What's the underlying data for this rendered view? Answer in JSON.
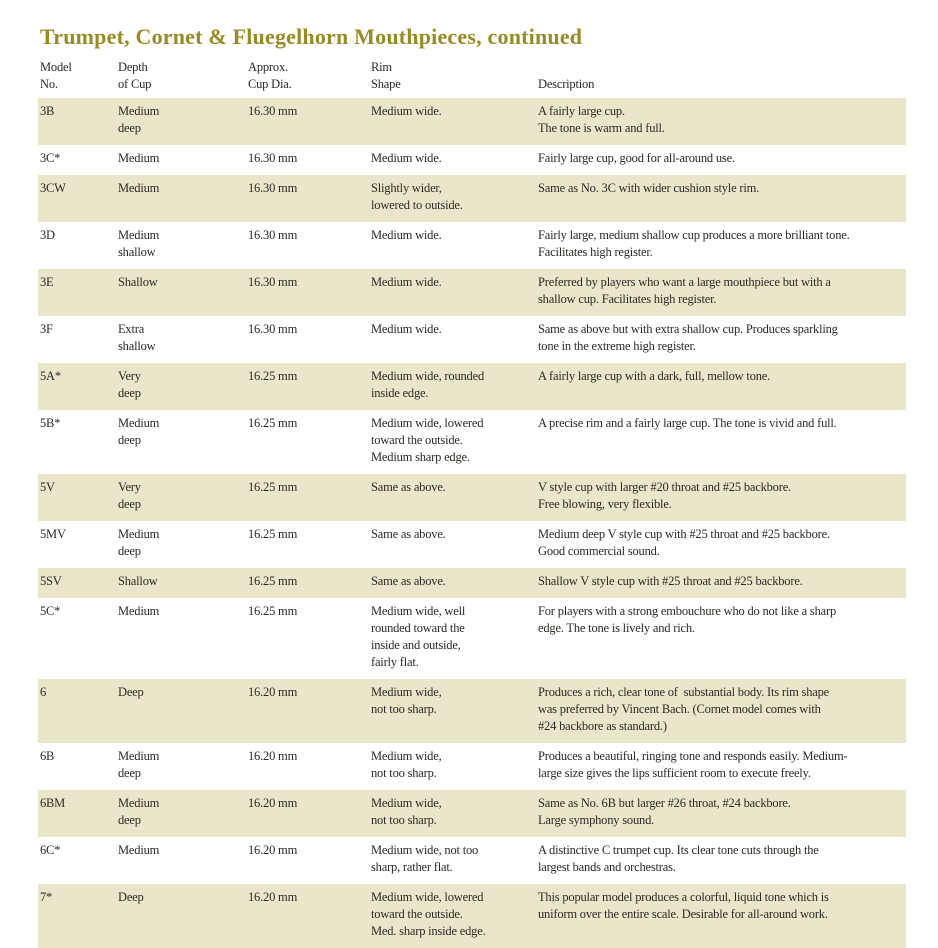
{
  "page": {
    "title": "Trumpet, Cornet & Fluegelhorn Mouthpieces, continued",
    "colors": {
      "title": "#998b24",
      "row_shade": "#eae6c9",
      "text": "#2d2a26",
      "background": "#ffffff"
    }
  },
  "table": {
    "headers": {
      "model": "Model\nNo.",
      "depth": "Depth\nof Cup",
      "cup_dia": "Approx.\nCup Dia.",
      "rim": "Rim\nShape",
      "desc": "Description"
    },
    "rows": [
      {
        "model": "3B",
        "depth": "Medium\ndeep",
        "cup_dia": "16.30 mm",
        "rim": "Medium wide.",
        "desc": "A fairly large cup.\nThe tone is warm and full."
      },
      {
        "model": "3C*",
        "depth": "Medium",
        "cup_dia": "16.30 mm",
        "rim": "Medium wide.",
        "desc": "Fairly large cup, good for all-around use."
      },
      {
        "model": "3CW",
        "depth": "Medium",
        "cup_dia": "16.30 mm",
        "rim": "Slightly wider,\nlowered to outside.",
        "desc": "Same as No. 3C with wider cushion style rim."
      },
      {
        "model": "3D",
        "depth": "Medium\nshallow",
        "cup_dia": "16.30 mm",
        "rim": "Medium wide.",
        "desc": "Fairly large, medium shallow cup produces a more brilliant tone.\nFacilitates high register."
      },
      {
        "model": "3E",
        "depth": "Shallow",
        "cup_dia": "16.30 mm",
        "rim": "Medium wide.",
        "desc": "Preferred by players who want a large mouthpiece but with a\nshallow cup. Facilitates high register."
      },
      {
        "model": "3F",
        "depth": "Extra\nshallow",
        "cup_dia": "16.30 mm",
        "rim": "Medium wide.",
        "desc": "Same as above but with extra shallow cup. Produces sparkling\ntone in the extreme high register."
      },
      {
        "model": "5A*",
        "depth": "Very\ndeep",
        "cup_dia": "16.25 mm",
        "rim": "Medium wide, rounded\ninside edge.",
        "desc": "A fairly large cup with a dark, full, mellow tone."
      },
      {
        "model": "5B*",
        "depth": "Medium\ndeep",
        "cup_dia": "16.25 mm",
        "rim": "Medium wide, lowered\ntoward the outside.\nMedium sharp edge.",
        "desc": "A precise rim and a fairly large cup. The tone is vivid and full."
      },
      {
        "model": "5V",
        "depth": "Very\ndeep",
        "cup_dia": "16.25 mm",
        "rim": "Same as above.",
        "desc": "V style cup with larger #20 throat and #25 backbore.\nFree blowing, very flexible."
      },
      {
        "model": "5MV",
        "depth": "Medium\ndeep",
        "cup_dia": "16.25 mm",
        "rim": "Same as above.",
        "desc": "Medium deep V style cup with #25 throat and #25 backbore.\nGood commercial sound."
      },
      {
        "model": "5SV",
        "depth": "Shallow",
        "cup_dia": "16.25 mm",
        "rim": "Same as above.",
        "desc": "Shallow V style cup with #25 throat and #25 backbore."
      },
      {
        "model": "5C*",
        "depth": "Medium",
        "cup_dia": "16.25 mm",
        "rim": "Medium wide, well\nrounded toward the\ninside and outside,\nfairly flat.",
        "desc": "For players with a strong embouchure who do not like a sharp\nedge. The tone is lively and rich."
      },
      {
        "model": "6",
        "depth": "Deep",
        "cup_dia": "16.20 mm",
        "rim": "Medium wide,\nnot too sharp.",
        "desc": "Produces a rich, clear tone of  substantial body. Its rim shape\nwas preferred by Vincent Bach. (Cornet model comes with\n#24 backbore as standard.)"
      },
      {
        "model": "6B",
        "depth": "Medium\ndeep",
        "cup_dia": "16.20 mm",
        "rim": "Medium wide,\nnot too sharp.",
        "desc": "Produces a beautiful, ringing tone and responds easily. Medium-\nlarge size gives the lips sufficient room to execute freely."
      },
      {
        "model": "6BM",
        "depth": "Medium\ndeep",
        "cup_dia": "16.20 mm",
        "rim": "Medium wide,\nnot too sharp.",
        "desc": "Same as No. 6B but larger #26 throat, #24 backbore.\nLarge symphony sound."
      },
      {
        "model": "6C*",
        "depth": "Medium",
        "cup_dia": "16.20 mm",
        "rim": "Medium wide, not too\nsharp, rather flat.",
        "desc": "A distinctive C trumpet cup. Its clear tone cuts through the\nlargest bands and orchestras."
      },
      {
        "model": "7*",
        "depth": "Deep",
        "cup_dia": "16.20 mm",
        "rim": "Medium wide, lowered\ntoward the outside.\nMed. sharp inside edge.",
        "desc": "This popular model produces a colorful, liquid tone which is\nuniform over the entire scale. Desirable for all-around work."
      }
    ]
  }
}
